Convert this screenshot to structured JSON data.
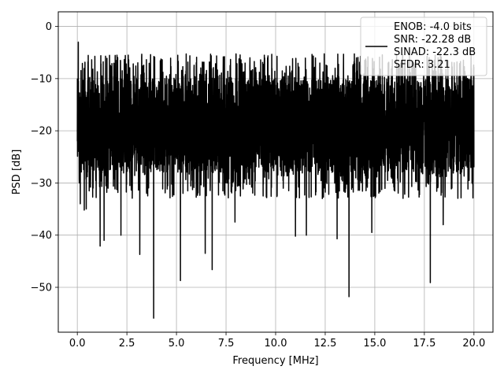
{
  "chart_data": {
    "type": "line",
    "title": "",
    "xlabel": "Frequency [MHz]",
    "ylabel": "PSD [dB]",
    "xlim": [
      -0.96,
      20.96
    ],
    "ylim": [
      -58.6,
      2.8
    ],
    "xticks": [
      0.0,
      2.5,
      5.0,
      7.5,
      10.0,
      12.5,
      15.0,
      17.5,
      20.0
    ],
    "xtick_labels": [
      "0.0",
      "2.5",
      "5.0",
      "7.5",
      "10.0",
      "12.5",
      "15.0",
      "17.5",
      "20.0"
    ],
    "yticks": [
      0,
      -10,
      -20,
      -30,
      -40,
      -50
    ],
    "ytick_labels": [
      "0",
      "−10",
      "−20",
      "−30",
      "−40",
      "−50"
    ],
    "grid": true,
    "legend_position": "top-right",
    "series": [
      {
        "name": "ENOB: -4.0 bits\nSNR: -22.28 dB\nSINAD: -22.3 dB\nSFDR: 3.21",
        "color": "#000000",
        "description": "dense noise floor approx -10 to -30 dB across 0-20 MHz with a DC peak at 0 dB",
        "x": [
          0.0,
          0.05,
          0.1,
          0.15,
          0.35,
          0.45,
          1.15,
          1.35,
          2.2,
          3.15,
          3.85,
          5.2,
          6.45,
          6.8,
          7.5,
          7.95,
          11.0,
          11.55,
          13.1,
          13.7,
          14.85,
          17.8,
          18.45,
          20.0
        ],
        "dips": [
          -22.0,
          -3.0,
          -30.0,
          -34.0,
          -35.2,
          -35.0,
          -42.1,
          -41.0,
          -40.0,
          -43.7,
          -55.9,
          -48.7,
          -43.5,
          -46.6,
          -30.0,
          -37.5,
          -40.2,
          -40.0,
          -40.7,
          -51.8,
          -39.5,
          -49.1,
          -38.0,
          -27.0
        ],
        "noise_floor_top": -10.0,
        "noise_floor_bottom": -28.0,
        "peak_max": -5.2
      }
    ]
  }
}
